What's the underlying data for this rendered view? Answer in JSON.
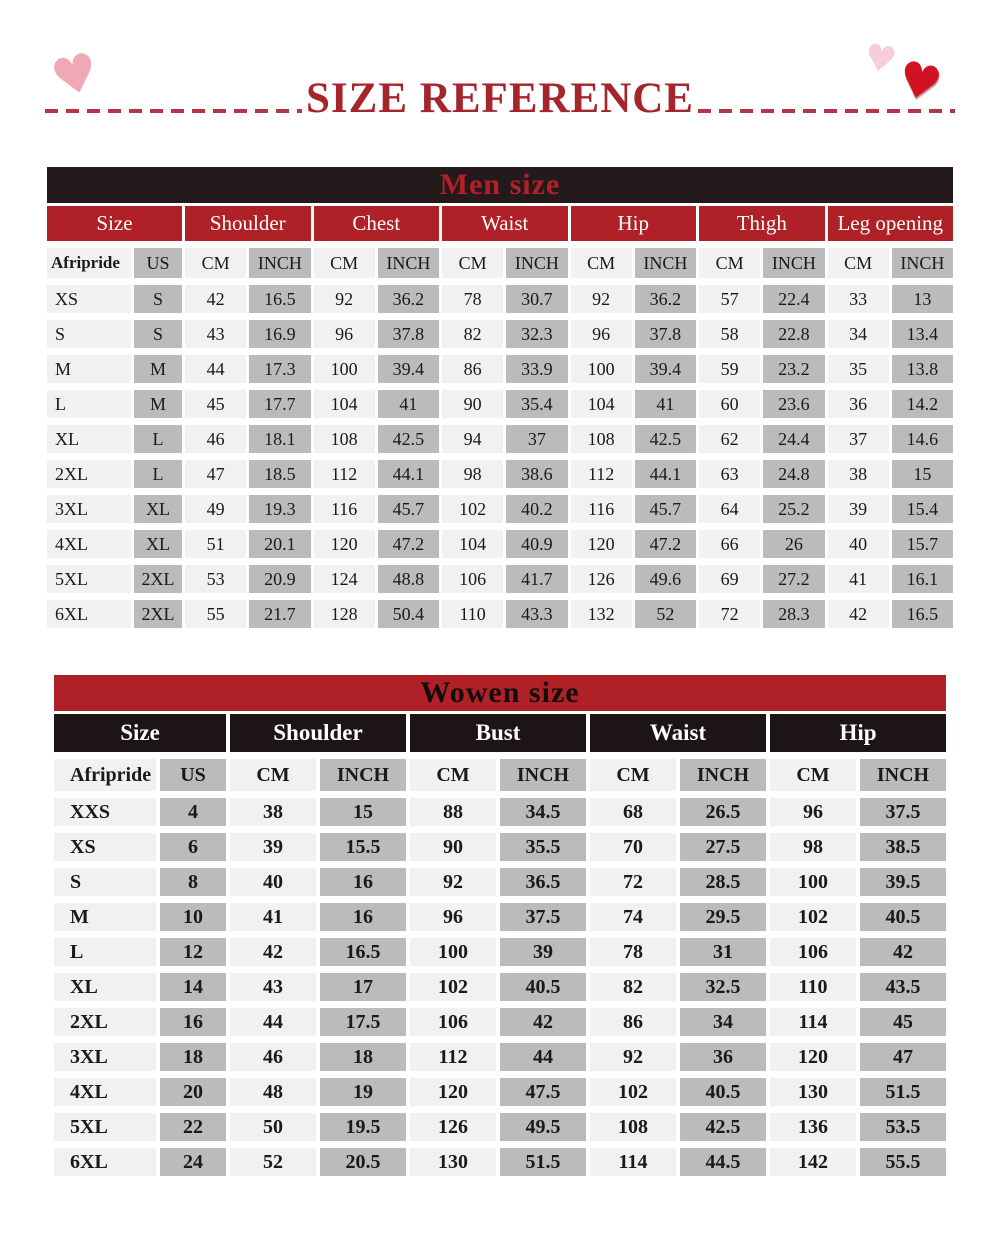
{
  "header": {
    "title": "SIZE REFERENCE"
  },
  "colors": {
    "accent_red": "#b02027",
    "dark_bar": "#241a1c",
    "black_cell": "#1d1416",
    "title_red": "#a6242c",
    "dash_red": "#b23648",
    "men_title_text": "#b22128",
    "light_cell": "#f2f1f1",
    "gray_cell": "#bcbaba",
    "heart_pink": "#f0a9b4",
    "heart_pale_pink": "#f6ced7",
    "heart_red": "#d01223"
  },
  "icons": {
    "heart": "♥"
  },
  "men_table": {
    "title": "Men size",
    "groups": [
      {
        "label": "Size",
        "span": 2
      },
      {
        "label": "Shoulder",
        "span": 2
      },
      {
        "label": "Chest",
        "span": 2
      },
      {
        "label": "Waist",
        "span": 2
      },
      {
        "label": "Hip",
        "span": 2
      },
      {
        "label": "Thigh",
        "span": 2
      },
      {
        "label": "Leg opening",
        "span": 2
      }
    ],
    "subheaders": [
      "Afripride",
      "US",
      "CM",
      "INCH",
      "CM",
      "INCH",
      "CM",
      "INCH",
      "CM",
      "INCH",
      "CM",
      "INCH",
      "CM",
      "INCH"
    ],
    "rows": [
      [
        "XS",
        "S",
        "42",
        "16.5",
        "92",
        "36.2",
        "78",
        "30.7",
        "92",
        "36.2",
        "57",
        "22.4",
        "33",
        "13"
      ],
      [
        "S",
        "S",
        "43",
        "16.9",
        "96",
        "37.8",
        "82",
        "32.3",
        "96",
        "37.8",
        "58",
        "22.8",
        "34",
        "13.4"
      ],
      [
        "M",
        "M",
        "44",
        "17.3",
        "100",
        "39.4",
        "86",
        "33.9",
        "100",
        "39.4",
        "59",
        "23.2",
        "35",
        "13.8"
      ],
      [
        "L",
        "M",
        "45",
        "17.7",
        "104",
        "41",
        "90",
        "35.4",
        "104",
        "41",
        "60",
        "23.6",
        "36",
        "14.2"
      ],
      [
        "XL",
        "L",
        "46",
        "18.1",
        "108",
        "42.5",
        "94",
        "37",
        "108",
        "42.5",
        "62",
        "24.4",
        "37",
        "14.6"
      ],
      [
        "2XL",
        "L",
        "47",
        "18.5",
        "112",
        "44.1",
        "98",
        "38.6",
        "112",
        "44.1",
        "63",
        "24.8",
        "38",
        "15"
      ],
      [
        "3XL",
        "XL",
        "49",
        "19.3",
        "116",
        "45.7",
        "102",
        "40.2",
        "116",
        "45.7",
        "64",
        "25.2",
        "39",
        "15.4"
      ],
      [
        "4XL",
        "XL",
        "51",
        "20.1",
        "120",
        "47.2",
        "104",
        "40.9",
        "120",
        "47.2",
        "66",
        "26",
        "40",
        "15.7"
      ],
      [
        "5XL",
        "2XL",
        "53",
        "20.9",
        "124",
        "48.8",
        "106",
        "41.7",
        "126",
        "49.6",
        "69",
        "27.2",
        "41",
        "16.1"
      ],
      [
        "6XL",
        "2XL",
        "55",
        "21.7",
        "128",
        "50.4",
        "110",
        "43.3",
        "132",
        "52",
        "72",
        "28.3",
        "42",
        "16.5"
      ]
    ]
  },
  "women_table": {
    "title": "Wowen size",
    "groups": [
      {
        "label": "Size",
        "span": 2
      },
      {
        "label": "Shoulder",
        "span": 2
      },
      {
        "label": "Bust",
        "span": 2
      },
      {
        "label": "Waist",
        "span": 2
      },
      {
        "label": "Hip",
        "span": 2
      }
    ],
    "subheaders": [
      "Afripride",
      "US",
      "CM",
      "INCH",
      "CM",
      "INCH",
      "CM",
      "INCH",
      "CM",
      "INCH"
    ],
    "rows": [
      [
        "XXS",
        "4",
        "38",
        "15",
        "88",
        "34.5",
        "68",
        "26.5",
        "96",
        "37.5"
      ],
      [
        "XS",
        "6",
        "39",
        "15.5",
        "90",
        "35.5",
        "70",
        "27.5",
        "98",
        "38.5"
      ],
      [
        "S",
        "8",
        "40",
        "16",
        "92",
        "36.5",
        "72",
        "28.5",
        "100",
        "39.5"
      ],
      [
        "M",
        "10",
        "41",
        "16",
        "96",
        "37.5",
        "74",
        "29.5",
        "102",
        "40.5"
      ],
      [
        "L",
        "12",
        "42",
        "16.5",
        "100",
        "39",
        "78",
        "31",
        "106",
        "42"
      ],
      [
        "XL",
        "14",
        "43",
        "17",
        "102",
        "40.5",
        "82",
        "32.5",
        "110",
        "43.5"
      ],
      [
        "2XL",
        "16",
        "44",
        "17.5",
        "106",
        "42",
        "86",
        "34",
        "114",
        "45"
      ],
      [
        "3XL",
        "18",
        "46",
        "18",
        "112",
        "44",
        "92",
        "36",
        "120",
        "47"
      ],
      [
        "4XL",
        "20",
        "48",
        "19",
        "120",
        "47.5",
        "102",
        "40.5",
        "130",
        "51.5"
      ],
      [
        "5XL",
        "22",
        "50",
        "19.5",
        "126",
        "49.5",
        "108",
        "42.5",
        "136",
        "53.5"
      ],
      [
        "6XL",
        "24",
        "52",
        "20.5",
        "130",
        "51.5",
        "114",
        "44.5",
        "142",
        "55.5"
      ]
    ]
  }
}
